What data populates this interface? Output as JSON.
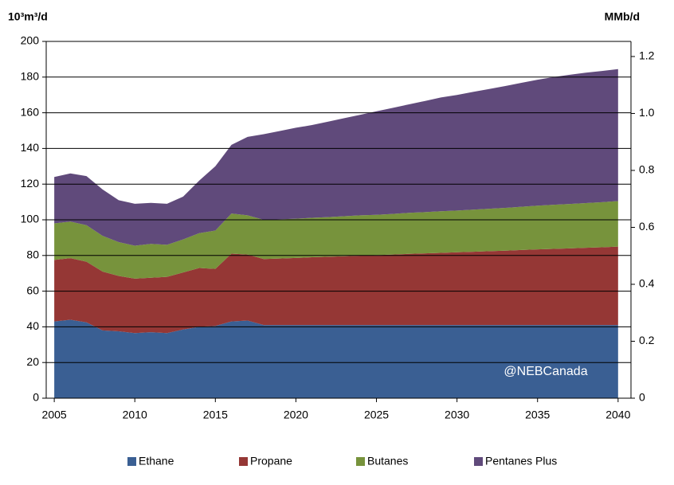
{
  "chart_data": {
    "type": "stacked-area",
    "y_label": "10³m³/d",
    "y2_label": "MMb/d",
    "annotation": "@NEBCanada",
    "x": [
      2005,
      2006,
      2007,
      2008,
      2009,
      2010,
      2011,
      2012,
      2013,
      2014,
      2015,
      2016,
      2017,
      2018,
      2019,
      2020,
      2021,
      2022,
      2023,
      2024,
      2025,
      2026,
      2027,
      2028,
      2029,
      2030,
      2031,
      2032,
      2033,
      2034,
      2035,
      2036,
      2037,
      2038,
      2039,
      2040
    ],
    "series": [
      {
        "name": "Ethane",
        "color": "#3a5f93",
        "values": [
          43,
          44,
          42.5,
          38,
          37.5,
          36.5,
          37,
          36.5,
          38.5,
          40,
          40.5,
          43,
          43.5,
          41,
          41,
          41,
          41,
          41,
          41,
          41,
          41,
          41,
          41,
          41,
          41,
          41,
          41,
          41,
          41,
          41,
          41,
          41,
          41,
          41,
          41,
          41
        ]
      },
      {
        "name": "Propane",
        "color": "#953735",
        "values": [
          34.5,
          34.5,
          34,
          33,
          31,
          30.5,
          30.5,
          31.5,
          32,
          33,
          32,
          38,
          37,
          37,
          37.3,
          37.6,
          38,
          38.3,
          38.6,
          38.9,
          39.2,
          39.5,
          39.9,
          40.2,
          40.5,
          40.8,
          41.1,
          41.4,
          41.7,
          42.1,
          42.4,
          42.7,
          43,
          43.3,
          43.6,
          44
        ]
      },
      {
        "name": "Butanes",
        "color": "#77933c",
        "values": [
          20.5,
          20.5,
          20.5,
          20,
          19,
          18.5,
          19,
          18,
          18.5,
          19.5,
          21.5,
          22.5,
          22,
          22,
          22,
          22,
          22.1,
          22.2,
          22.4,
          22.6,
          22.6,
          22.8,
          23,
          23.1,
          23.3,
          23.4,
          23.6,
          23.8,
          24,
          24.2,
          24.5,
          24.7,
          24.9,
          25.1,
          25.3,
          25.5
        ]
      },
      {
        "name": "Pentanes Plus",
        "color": "#604a7b",
        "values": [
          26,
          27,
          27.5,
          26,
          23.5,
          23.5,
          23,
          23,
          24,
          29.5,
          36,
          38.5,
          44,
          48,
          49.5,
          51,
          52,
          53.5,
          55,
          56.4,
          58,
          59.4,
          60.8,
          62.3,
          63.8,
          64.8,
          66,
          67.1,
          68.3,
          69.5,
          70.6,
          71.6,
          72.4,
          73.1,
          73.5,
          74
        ]
      }
    ],
    "xlim": [
      2004.5,
      2040.8
    ],
    "xticks": [
      2005,
      2010,
      2015,
      2020,
      2025,
      2030,
      2035,
      2040
    ],
    "ylim": [
      0,
      200
    ],
    "yticks": [
      0,
      20,
      40,
      60,
      80,
      100,
      120,
      140,
      160,
      180,
      200
    ],
    "y2lim": [
      0,
      1.253
    ],
    "y2ticks": [
      0,
      0.2,
      0.4,
      0.6,
      0.8,
      {
        "value": 1,
        "label": "1.0"
      },
      1.2
    ],
    "grid": true,
    "legend": "bottom"
  }
}
